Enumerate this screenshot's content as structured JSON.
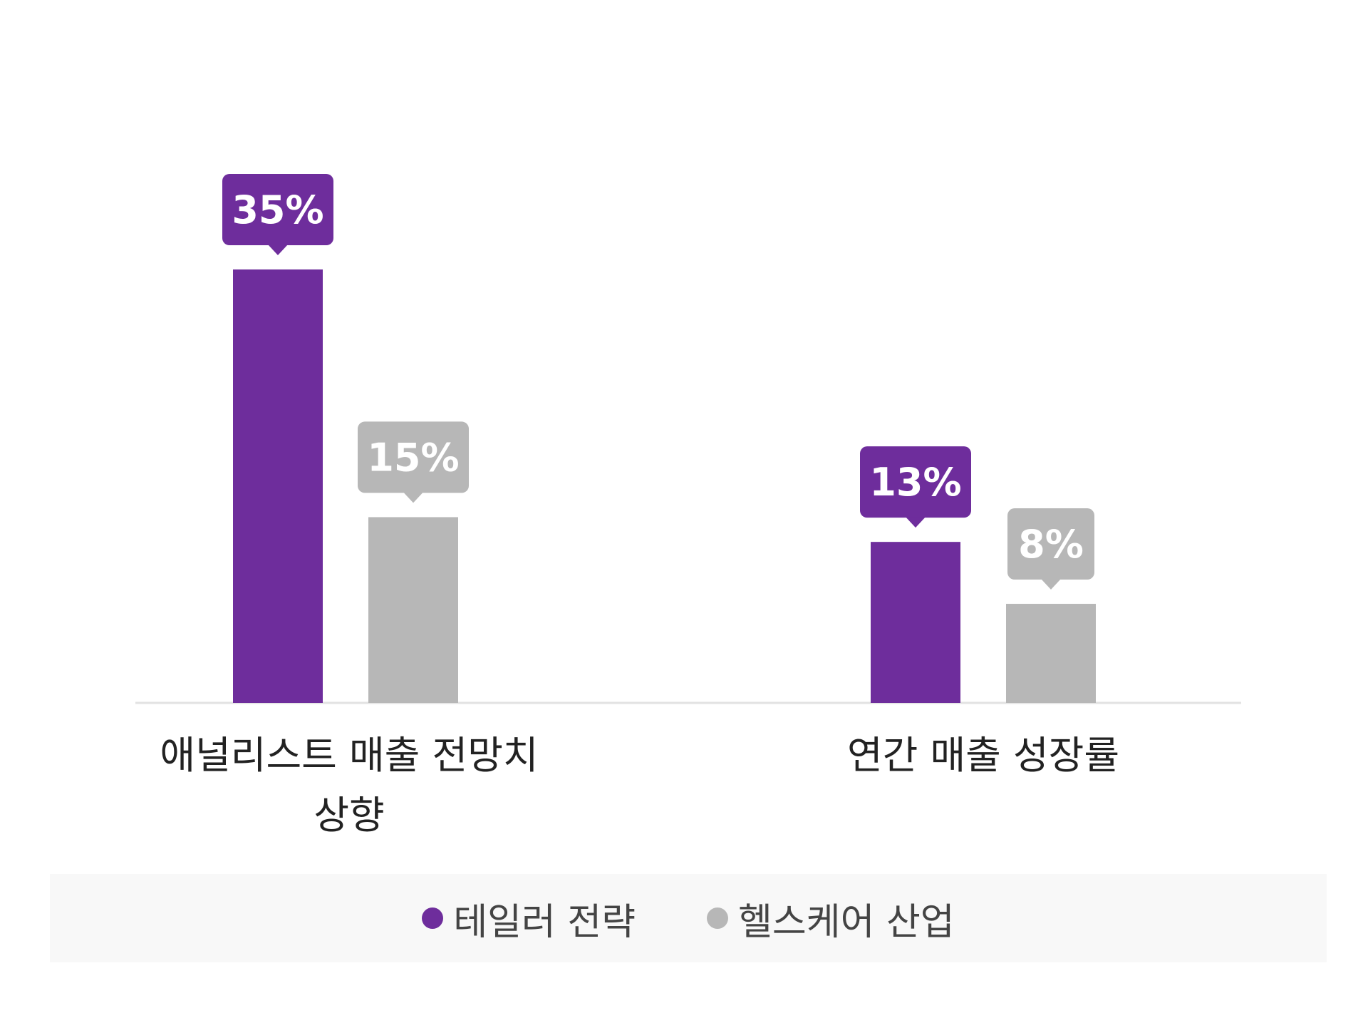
{
  "chart_data": {
    "type": "bar",
    "categories": [
      "애널리스트 매출 전망치\n상향",
      "연간 매출 성장률"
    ],
    "series": [
      {
        "name": "테일러 전략",
        "values": [
          35,
          13
        ],
        "labels": [
          "35%",
          "13%"
        ],
        "color": "#6e2d9c"
      },
      {
        "name": "헬스케어 산업",
        "values": [
          15,
          8
        ],
        "labels": [
          "15%",
          "8%"
        ],
        "color": "#b7b7b7"
      }
    ],
    "ylim": [
      0,
      35
    ],
    "legend_position": "bottom",
    "grid": false
  }
}
